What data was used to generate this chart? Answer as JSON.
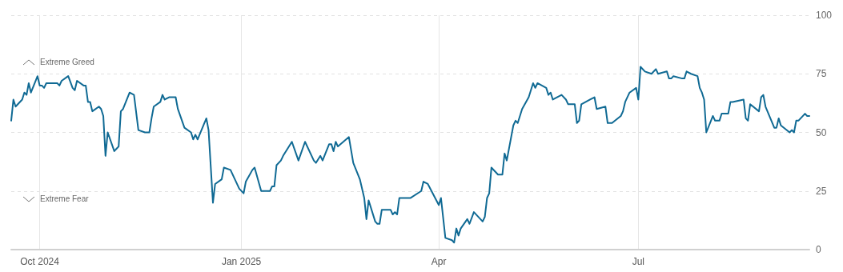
{
  "chart_data": {
    "type": "line",
    "annotations": [
      "Extreme Greed",
      "Extreme Fear"
    ],
    "xlim": [
      "2024-09-18",
      "2025-09-17"
    ],
    "xticks": [
      {
        "value": "2024-10-01",
        "label": "Oct 2024"
      },
      {
        "value": "2025-01-01",
        "label": "Jan 2025"
      },
      {
        "value": "2025-04-01",
        "label": "Apr"
      },
      {
        "value": "2025-07-01",
        "label": "Jul"
      }
    ],
    "ylim": [
      0,
      100
    ],
    "yticks": [
      0,
      25,
      50,
      75,
      100
    ],
    "grid": true,
    "marker": "none",
    "line_style": "solid",
    "series": [
      {
        "color": "#106a94",
        "x": [
          "2024-09-18",
          "2024-09-19",
          "2024-09-20",
          "2024-09-23",
          "2024-09-24",
          "2024-09-25",
          "2024-09-26",
          "2024-09-27",
          "2024-09-30",
          "2024-10-01",
          "2024-10-02",
          "2024-10-03",
          "2024-10-04",
          "2024-10-07",
          "2024-10-09",
          "2024-10-10",
          "2024-10-11",
          "2024-10-14",
          "2024-10-16",
          "2024-10-17",
          "2024-10-18",
          "2024-10-21",
          "2024-10-22",
          "2024-10-23",
          "2024-10-24",
          "2024-10-25",
          "2024-10-28",
          "2024-10-29",
          "2024-10-30",
          "2024-10-31",
          "2024-11-01",
          "2024-11-04",
          "2024-11-05",
          "2024-11-06",
          "2024-11-07",
          "2024-11-08",
          "2024-11-11",
          "2024-11-13",
          "2024-11-15",
          "2024-11-18",
          "2024-11-20",
          "2024-11-21",
          "2024-11-22",
          "2024-11-25",
          "2024-11-26",
          "2024-11-27",
          "2024-11-29",
          "2024-12-02",
          "2024-12-03",
          "2024-12-06",
          "2024-12-09",
          "2024-12-10",
          "2024-12-11",
          "2024-12-12",
          "2024-12-16",
          "2024-12-17",
          "2024-12-19",
          "2024-12-20",
          "2024-12-23",
          "2024-12-24",
          "2024-12-27",
          "2024-12-31",
          "2025-01-02",
          "2025-01-03",
          "2025-01-06",
          "2025-01-07",
          "2025-01-10",
          "2025-01-14",
          "2025-01-15",
          "2025-01-16",
          "2025-01-17",
          "2025-01-19",
          "2025-01-20",
          "2025-01-24",
          "2025-01-27",
          "2025-01-30",
          "2025-02-03",
          "2025-02-04",
          "2025-02-06",
          "2025-02-07",
          "2025-02-10",
          "2025-02-11",
          "2025-02-12",
          "2025-02-13",
          "2025-02-14",
          "2025-02-19",
          "2025-02-21",
          "2025-02-24",
          "2025-02-26",
          "2025-02-27",
          "2025-02-28",
          "2025-03-03",
          "2025-03-04",
          "2025-03-05",
          "2025-03-06",
          "2025-03-10",
          "2025-03-11",
          "2025-03-12",
          "2025-03-13",
          "2025-03-14",
          "2025-03-17",
          "2025-03-19",
          "2025-03-24",
          "2025-03-25",
          "2025-03-27",
          "2025-04-01",
          "2025-04-02",
          "2025-04-04",
          "2025-04-07",
          "2025-04-08",
          "2025-04-09",
          "2025-04-10",
          "2025-04-11",
          "2025-04-14",
          "2025-04-15",
          "2025-04-17",
          "2025-04-21",
          "2025-04-22",
          "2025-04-23",
          "2025-04-24",
          "2025-04-25",
          "2025-04-28",
          "2025-04-29",
          "2025-04-30",
          "2025-05-01",
          "2025-05-02",
          "2025-05-05",
          "2025-05-06",
          "2025-05-07",
          "2025-05-09",
          "2025-05-12",
          "2025-05-14",
          "2025-05-15",
          "2025-05-16",
          "2025-05-20",
          "2025-05-21",
          "2025-05-22",
          "2025-05-23",
          "2025-05-27",
          "2025-05-29",
          "2025-05-30",
          "2025-06-02",
          "2025-06-03",
          "2025-06-04",
          "2025-06-05",
          "2025-06-09",
          "2025-06-11",
          "2025-06-12",
          "2025-06-16",
          "2025-06-17",
          "2025-06-19",
          "2025-06-23",
          "2025-06-24",
          "2025-06-25",
          "2025-06-27",
          "2025-06-30",
          "2025-07-01",
          "2025-07-02",
          "2025-07-04",
          "2025-07-07",
          "2025-07-09",
          "2025-07-10",
          "2025-07-14",
          "2025-07-15",
          "2025-07-16",
          "2025-07-17",
          "2025-07-21",
          "2025-07-22",
          "2025-07-23",
          "2025-07-25",
          "2025-07-28",
          "2025-07-29",
          "2025-07-30",
          "2025-07-31",
          "2025-08-01",
          "2025-08-04",
          "2025-08-05",
          "2025-08-06",
          "2025-08-07",
          "2025-08-08",
          "2025-08-11",
          "2025-08-12",
          "2025-08-13",
          "2025-08-18",
          "2025-08-19",
          "2025-08-20",
          "2025-08-21",
          "2025-08-25",
          "2025-08-26",
          "2025-08-27",
          "2025-08-28",
          "2025-09-01",
          "2025-09-02",
          "2025-09-03",
          "2025-09-04",
          "2025-09-08",
          "2025-09-09",
          "2025-09-10",
          "2025-09-11",
          "2025-09-12",
          "2025-09-15",
          "2025-09-16",
          "2025-09-17"
        ],
        "values": [
          55,
          64,
          61,
          64,
          67,
          66,
          71,
          67,
          74,
          70,
          70,
          69,
          71,
          71,
          71,
          70,
          72,
          74,
          69,
          68,
          72,
          70,
          70,
          63,
          63,
          59,
          61,
          60,
          57,
          40,
          50,
          42,
          43,
          44,
          59,
          60,
          67,
          66,
          51,
          50,
          50,
          56,
          61,
          63,
          66,
          64,
          65,
          65,
          60,
          52,
          50,
          47,
          49,
          47,
          56,
          51,
          20,
          28,
          30,
          35,
          34,
          26,
          24,
          29,
          34,
          35,
          25,
          25,
          27,
          27,
          36,
          38,
          40,
          46,
          38,
          46,
          38,
          37,
          40,
          38,
          45,
          45,
          42,
          46,
          44,
          48,
          37,
          30,
          22,
          13,
          21,
          12,
          11,
          11,
          17,
          17,
          15,
          16,
          15,
          22,
          22,
          22,
          25,
          29,
          28,
          19,
          22,
          5,
          4,
          3,
          9,
          6,
          9,
          13,
          11,
          16,
          12,
          14,
          22,
          24,
          35,
          32,
          32,
          32,
          41,
          38,
          53,
          55,
          54,
          60,
          65,
          71,
          69,
          71,
          69,
          66,
          67,
          64,
          66,
          64,
          62,
          62,
          54,
          55,
          62,
          64,
          65,
          60,
          61,
          54,
          54,
          57,
          59,
          63,
          67,
          69,
          64,
          78,
          76,
          75,
          77,
          75,
          76,
          73,
          73,
          74,
          73,
          73,
          76,
          75,
          74,
          69,
          67,
          64,
          50,
          57,
          55,
          55,
          55,
          58,
          58,
          63,
          63,
          64,
          56,
          55,
          62,
          59,
          65,
          66,
          61,
          52,
          52,
          56,
          53,
          50,
          51,
          50,
          55,
          55,
          58,
          57,
          57
        ]
      }
    ]
  }
}
